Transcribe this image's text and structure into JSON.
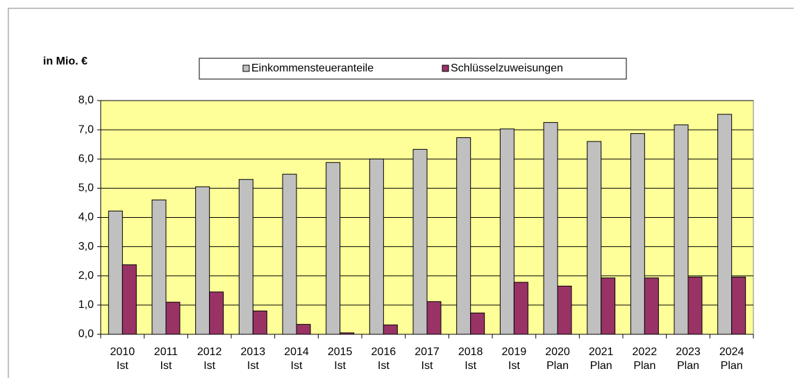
{
  "chart_data": {
    "type": "bar",
    "unit_label": "in Mio. €",
    "categories": [
      [
        "2010",
        "Ist"
      ],
      [
        "2011",
        "Ist"
      ],
      [
        "2012",
        "Ist"
      ],
      [
        "2013",
        "Ist"
      ],
      [
        "2014",
        "Ist"
      ],
      [
        "2015",
        "Ist"
      ],
      [
        "2016",
        "Ist"
      ],
      [
        "2017",
        "Ist"
      ],
      [
        "2018",
        "Ist"
      ],
      [
        "2019",
        "Ist"
      ],
      [
        "2020",
        "Plan"
      ],
      [
        "2021",
        "Plan"
      ],
      [
        "2022",
        "Plan"
      ],
      [
        "2023",
        "Plan"
      ],
      [
        "2024",
        "Plan"
      ]
    ],
    "series": [
      {
        "name": "Einkommensteueranteile",
        "color": "#c0c0c0",
        "values": [
          4.22,
          4.6,
          5.05,
          5.3,
          5.48,
          5.88,
          6.0,
          6.33,
          6.73,
          7.03,
          7.25,
          6.6,
          6.87,
          7.17,
          7.53
        ]
      },
      {
        "name": "Schlüsselzuweisungen",
        "color": "#993366",
        "values": [
          2.38,
          1.1,
          1.45,
          0.8,
          0.34,
          0.05,
          0.32,
          1.12,
          0.73,
          1.78,
          1.65,
          1.93,
          1.93,
          1.96,
          1.96
        ]
      }
    ],
    "ylim": [
      0,
      8
    ],
    "yticks": [
      {
        "value": 0,
        "label": "0,0"
      },
      {
        "value": 1,
        "label": "1,0"
      },
      {
        "value": 2,
        "label": "2,0"
      },
      {
        "value": 3,
        "label": "3,0"
      },
      {
        "value": 4,
        "label": "4,0"
      },
      {
        "value": 5,
        "label": "5,0"
      },
      {
        "value": 6,
        "label": "6,0"
      },
      {
        "value": 7,
        "label": "7,0"
      },
      {
        "value": 8,
        "label": "8,0"
      }
    ],
    "grid": true,
    "plot_background": "#ffff99",
    "legend": "top"
  }
}
